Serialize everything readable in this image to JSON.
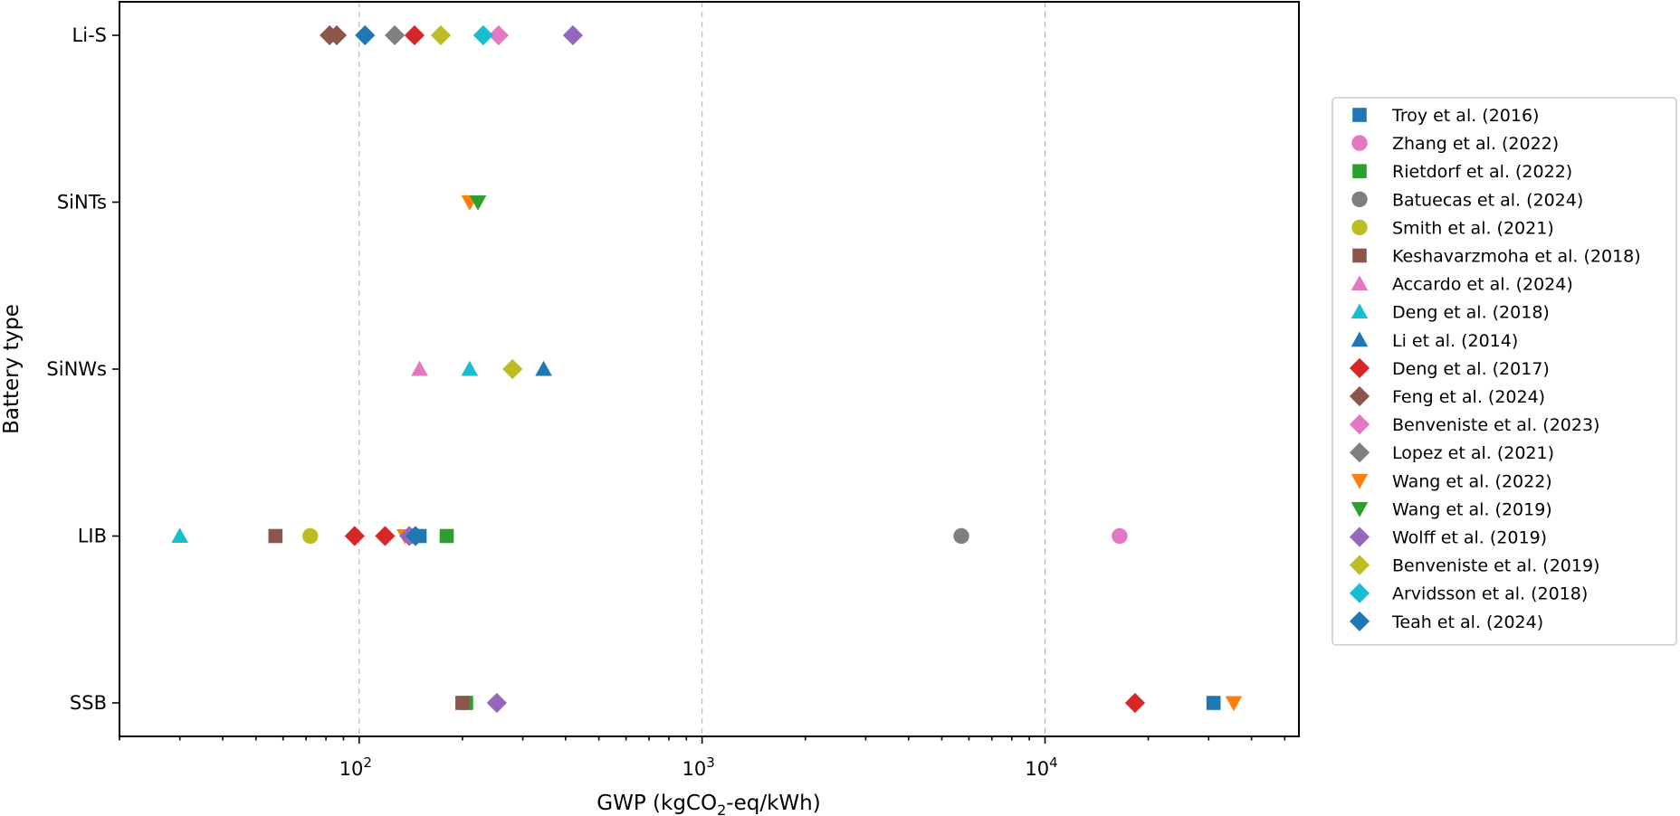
{
  "chart_data": {
    "type": "scatter",
    "title": "",
    "xlabel": "GWP (kgCO2-eq/kWh)",
    "xlabel_parts": {
      "prefix": "GWP (kgCO",
      "sub": "2",
      "suffix": "-eq/kWh)"
    },
    "ylabel": "Battery type",
    "x_scale": "log",
    "xlim": [
      20,
      55000
    ],
    "x_ticks": [
      {
        "value": 100,
        "base": "10",
        "exp": "2"
      },
      {
        "value": 1000,
        "base": "10",
        "exp": "3"
      },
      {
        "value": 10000,
        "base": "10",
        "exp": "4"
      }
    ],
    "categories": [
      "Li-S",
      "SiNTs",
      "SiNWs",
      "LIB",
      "SSB"
    ],
    "grid": "x-major dashed",
    "legend_position": "right",
    "series": [
      {
        "name": "Troy et al. (2016)",
        "marker": "square",
        "color": "#1f77b4",
        "points": [
          {
            "x": 31000,
            "y": "SSB"
          },
          {
            "x": 150,
            "y": "LIB"
          }
        ]
      },
      {
        "name": "Zhang et al. (2022)",
        "marker": "circle",
        "color": "#e377c2",
        "points": [
          {
            "x": 16500,
            "y": "LIB"
          },
          {
            "x": 143,
            "y": "LIB"
          }
        ]
      },
      {
        "name": "Rietdorf et al. (2022)",
        "marker": "square",
        "color": "#2ca02c",
        "points": [
          {
            "x": 205,
            "y": "SSB"
          },
          {
            "x": 180,
            "y": "LIB"
          }
        ]
      },
      {
        "name": "Batuecas et al. (2024)",
        "marker": "circle",
        "color": "#7f7f7f",
        "points": [
          {
            "x": 5700,
            "y": "LIB"
          }
        ]
      },
      {
        "name": "Smith et al. (2021)",
        "marker": "circle",
        "color": "#bcbd22",
        "points": [
          {
            "x": 72,
            "y": "LIB"
          }
        ]
      },
      {
        "name": "Keshavarzmoha et al. (2018)",
        "marker": "square",
        "color": "#8c564b",
        "points": [
          {
            "x": 200,
            "y": "SSB"
          },
          {
            "x": 57,
            "y": "LIB"
          }
        ]
      },
      {
        "name": "Accardo et al. (2024)",
        "marker": "triangle-up",
        "color": "#e377c2",
        "points": [
          {
            "x": 150,
            "y": "SiNWs"
          }
        ]
      },
      {
        "name": "Deng et al. (2018)",
        "marker": "triangle-up",
        "color": "#17becf",
        "points": [
          {
            "x": 210,
            "y": "SiNWs"
          },
          {
            "x": 30,
            "y": "LIB"
          }
        ]
      },
      {
        "name": "Li et al. (2014)",
        "marker": "triangle-up",
        "color": "#1f77b4",
        "points": [
          {
            "x": 345,
            "y": "SiNWs"
          }
        ]
      },
      {
        "name": "Deng et al. (2017)",
        "marker": "diamond",
        "color": "#d62728",
        "points": [
          {
            "x": 145,
            "y": "Li-S"
          },
          {
            "x": 18300,
            "y": "SSB"
          },
          {
            "x": 97,
            "y": "LIB"
          },
          {
            "x": 119,
            "y": "LIB"
          }
        ]
      },
      {
        "name": "Feng et al. (2024)",
        "marker": "diamond",
        "color": "#8c564b",
        "points": [
          {
            "x": 82,
            "y": "Li-S"
          },
          {
            "x": 86,
            "y": "Li-S"
          }
        ]
      },
      {
        "name": "Benveniste et al. (2023)",
        "marker": "diamond",
        "color": "#e377c2",
        "points": [
          {
            "x": 255,
            "y": "Li-S"
          }
        ]
      },
      {
        "name": "Lopez et al. (2021)",
        "marker": "diamond",
        "color": "#7f7f7f",
        "points": [
          {
            "x": 127,
            "y": "Li-S"
          }
        ]
      },
      {
        "name": "Wang et al. (2022)",
        "marker": "triangle-down",
        "color": "#ff7f0e",
        "points": [
          {
            "x": 210,
            "y": "SiNTs"
          },
          {
            "x": 35500,
            "y": "SSB"
          },
          {
            "x": 136,
            "y": "LIB"
          }
        ]
      },
      {
        "name": "Wang et al. (2019)",
        "marker": "triangle-down",
        "color": "#2ca02c",
        "points": [
          {
            "x": 222,
            "y": "SiNTs"
          }
        ]
      },
      {
        "name": "Wolff et al. (2019)",
        "marker": "diamond",
        "color": "#9467bd",
        "points": [
          {
            "x": 420,
            "y": "Li-S"
          },
          {
            "x": 252,
            "y": "SSB"
          },
          {
            "x": 140,
            "y": "LIB"
          }
        ]
      },
      {
        "name": "Benveniste et al. (2019)",
        "marker": "diamond",
        "color": "#bcbd22",
        "points": [
          {
            "x": 173,
            "y": "Li-S"
          },
          {
            "x": 280,
            "y": "SiNWs"
          }
        ]
      },
      {
        "name": "Arvidsson et al. (2018)",
        "marker": "diamond",
        "color": "#17becf",
        "points": [
          {
            "x": 230,
            "y": "Li-S"
          }
        ]
      },
      {
        "name": "Teah et al. (2024)",
        "marker": "diamond",
        "color": "#1f77b4",
        "points": [
          {
            "x": 104,
            "y": "Li-S"
          },
          {
            "x": 146,
            "y": "LIB"
          }
        ]
      }
    ]
  }
}
